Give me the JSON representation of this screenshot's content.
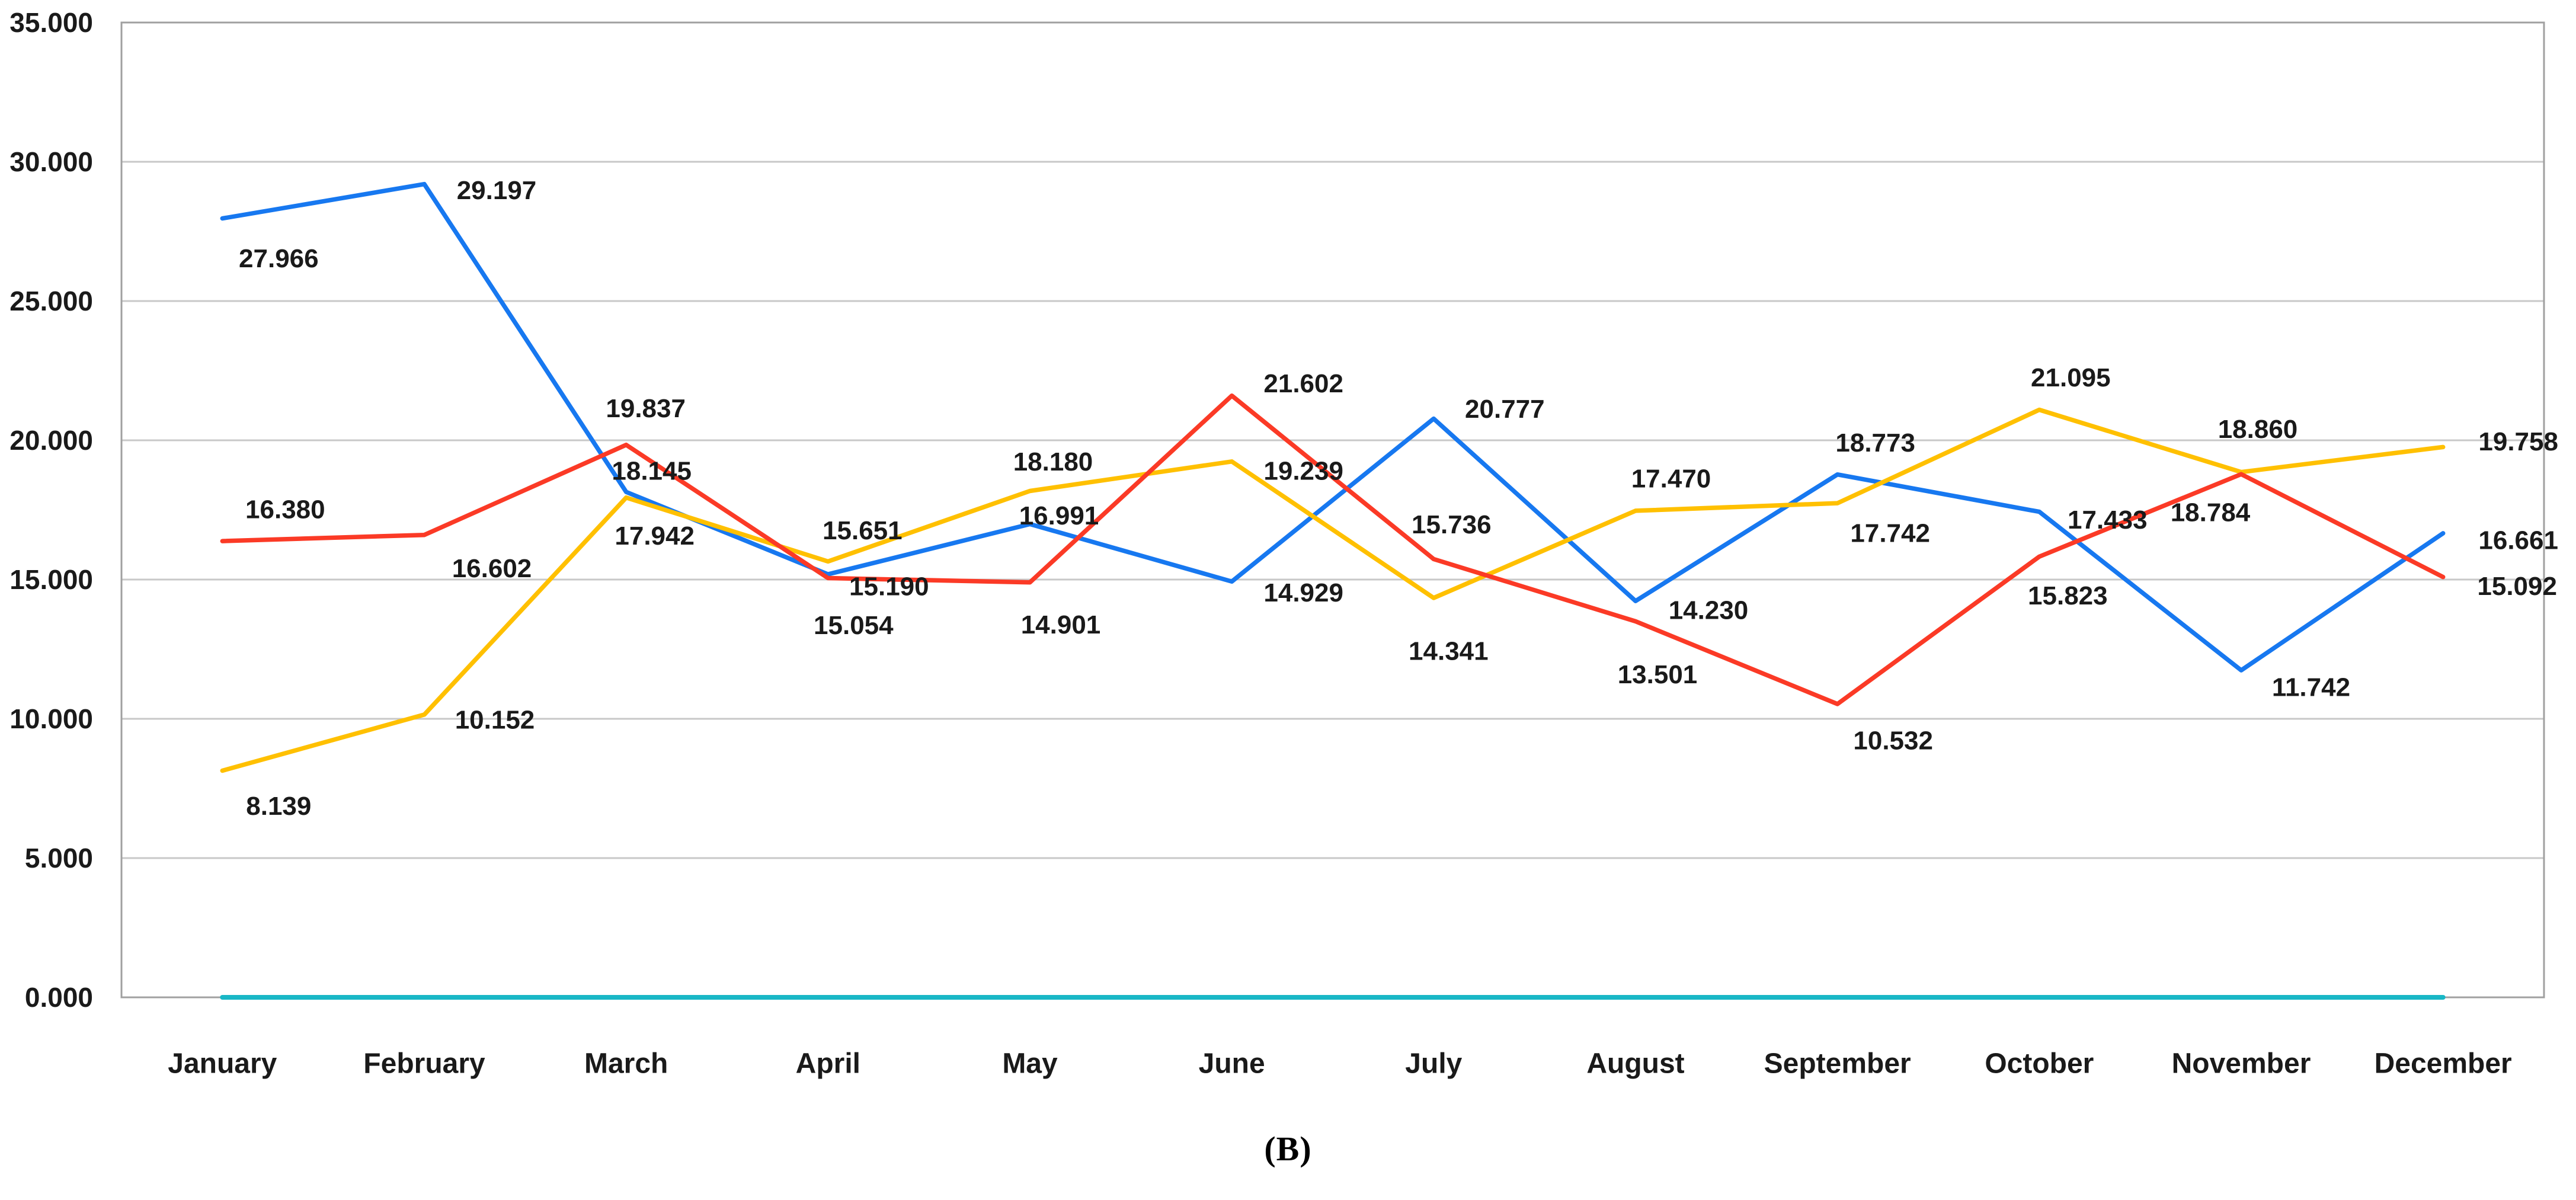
{
  "page": {
    "background": "#ffffff",
    "caption": "(B)"
  },
  "chart_data": {
    "type": "line",
    "title": "",
    "xlabel": "",
    "ylabel": "",
    "categories": [
      "January",
      "February",
      "March",
      "April",
      "May",
      "June",
      "July",
      "August",
      "September",
      "October",
      "November",
      "December"
    ],
    "y_axis": {
      "min": 0,
      "max": 35,
      "step": 5,
      "tick_labels": [
        "35.000",
        "30.000",
        "25.000",
        "20.000",
        "15.000",
        "10.000",
        "5.000",
        "0.000"
      ]
    },
    "grid": true,
    "legend": "none",
    "colors": {
      "grid": "#c8c8c8",
      "plot_border": "#a0a0a0",
      "text": "#1a1a1a"
    },
    "series": [
      {
        "name": "blue",
        "color": "#1778f0",
        "values": [
          27.966,
          29.197,
          18.145,
          15.19,
          16.991,
          14.929,
          20.777,
          14.23,
          18.773,
          17.433,
          11.742,
          16.661
        ],
        "labels": [
          "27.966",
          "29.197",
          "18.145",
          "15.190",
          "16.991",
          "14.929",
          "20.777",
          "14.230",
          "18.773",
          "17.433",
          "11.742",
          "16.661"
        ]
      },
      {
        "name": "yellow",
        "color": "#ffc000",
        "values": [
          8.139,
          10.152,
          17.942,
          15.651,
          18.18,
          19.239,
          14.341,
          17.47,
          17.742,
          21.095,
          18.86,
          19.758
        ],
        "labels": [
          "8.139",
          "10.152",
          "17.942",
          "15.651",
          "18.180",
          "19.239",
          "14.341",
          "17.470",
          "17.742",
          "21.095",
          "18.860",
          "19.758"
        ]
      },
      {
        "name": "red",
        "color": "#fb3a26",
        "values": [
          16.38,
          16.602,
          19.837,
          15.054,
          14.901,
          21.602,
          15.736,
          13.501,
          10.532,
          15.823,
          18.784,
          15.092
        ],
        "labels": [
          "16.380",
          "16.602",
          "19.837",
          "15.054",
          "14.901",
          "21.602",
          "15.736",
          "13.501",
          "10.532",
          "15.823",
          "18.784",
          "15.092"
        ]
      },
      {
        "name": "teal",
        "color": "#19b7c6",
        "values": [
          0,
          0,
          0,
          0,
          0,
          0,
          0,
          0,
          0,
          0,
          0,
          0
        ],
        "labels": []
      }
    ],
    "label_offsets": {
      "blue": [
        [
          95,
          68
        ],
        [
          122,
          11
        ],
        [
          43,
          -35
        ],
        [
          103,
          21
        ],
        [
          49,
          -14
        ],
        [
          121,
          19
        ],
        [
          120,
          -16
        ],
        [
          123,
          16
        ],
        [
          64,
          -53
        ],
        [
          115,
          14
        ],
        [
          118,
          29
        ],
        [
          127,
          12
        ]
      ],
      "yellow": [
        [
          95,
          60
        ],
        [
          119,
          9
        ],
        [
          48,
          65
        ],
        [
          58,
          -52
        ],
        [
          39,
          -49
        ],
        [
          121,
          16
        ],
        [
          25,
          90
        ],
        [
          60,
          -54
        ],
        [
          89,
          51
        ],
        [
          53,
          -54
        ],
        [
          28,
          -72
        ],
        [
          127,
          -9
        ]
      ],
      "red": [
        [
          106,
          -53
        ],
        [
          114,
          57
        ],
        [
          33,
          -61
        ],
        [
          43,
          80
        ],
        [
          52,
          72
        ],
        [
          121,
          -20
        ],
        [
          30,
          -58
        ],
        [
          37,
          90
        ],
        [
          94,
          62
        ],
        [
          48,
          66
        ],
        [
          -52,
          65
        ],
        [
          125,
          16
        ]
      ]
    }
  }
}
